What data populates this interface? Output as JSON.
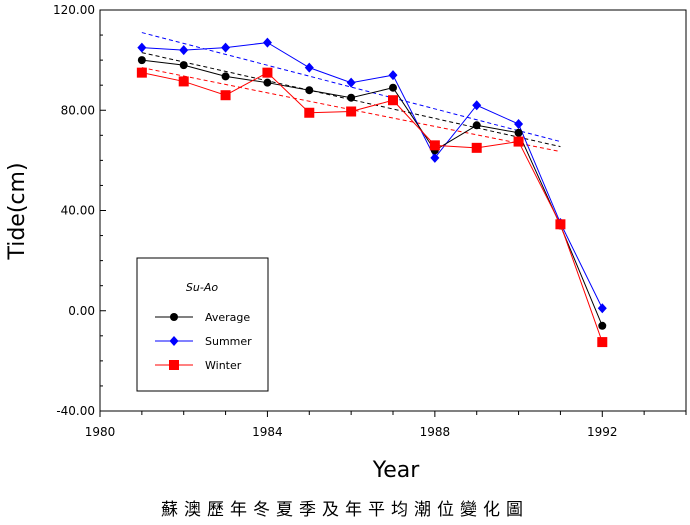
{
  "chart_data": {
    "type": "line",
    "title": "",
    "xlabel": "Year",
    "ylabel": "Tide(cm)",
    "xlim": [
      1980,
      1994
    ],
    "ylim": [
      -40,
      120
    ],
    "x_ticks": [
      "1980",
      "1984",
      "1988",
      "1992"
    ],
    "y_ticks": [
      "-40.00",
      "0.00",
      "40.00",
      "80.00",
      "120.00"
    ],
    "legend_title": "Su-Ao",
    "legend_position": "bottom-left",
    "grid": false,
    "series": [
      {
        "name": "Average",
        "color": "#000000",
        "marker": "circle",
        "x": [
          1981,
          1982,
          1983,
          1984,
          1985,
          1986,
          1987,
          1988,
          1989,
          1990,
          1991,
          1992
        ],
        "y": [
          100,
          98,
          93.5,
          91,
          88,
          85,
          89,
          64,
          74,
          71,
          34,
          -6
        ],
        "trend": [
          [
            1981,
            103
          ],
          [
            1991,
            65.5
          ]
        ]
      },
      {
        "name": "Summer",
        "color": "#0000ff",
        "marker": "diamond",
        "x": [
          1981,
          1982,
          1983,
          1984,
          1985,
          1986,
          1987,
          1988,
          1989,
          1990,
          1991,
          1992
        ],
        "y": [
          105,
          104,
          105,
          107,
          97,
          91,
          94,
          61,
          82,
          74.5,
          35,
          1
        ],
        "trend": [
          [
            1981,
            111
          ],
          [
            1991,
            67.5
          ]
        ]
      },
      {
        "name": "Winter",
        "color": "#ff0000",
        "marker": "square",
        "x": [
          1981,
          1982,
          1983,
          1984,
          1985,
          1986,
          1987,
          1988,
          1989,
          1990,
          1991,
          1992
        ],
        "y": [
          95,
          91.5,
          86,
          95,
          79,
          79.5,
          84,
          66,
          65,
          67.5,
          34.5,
          -12.5
        ],
        "trend": [
          [
            1981,
            97
          ],
          [
            1991,
            63.5
          ]
        ]
      }
    ],
    "caption": "蘇澳歷年冬夏季及年平均潮位變化圖"
  }
}
